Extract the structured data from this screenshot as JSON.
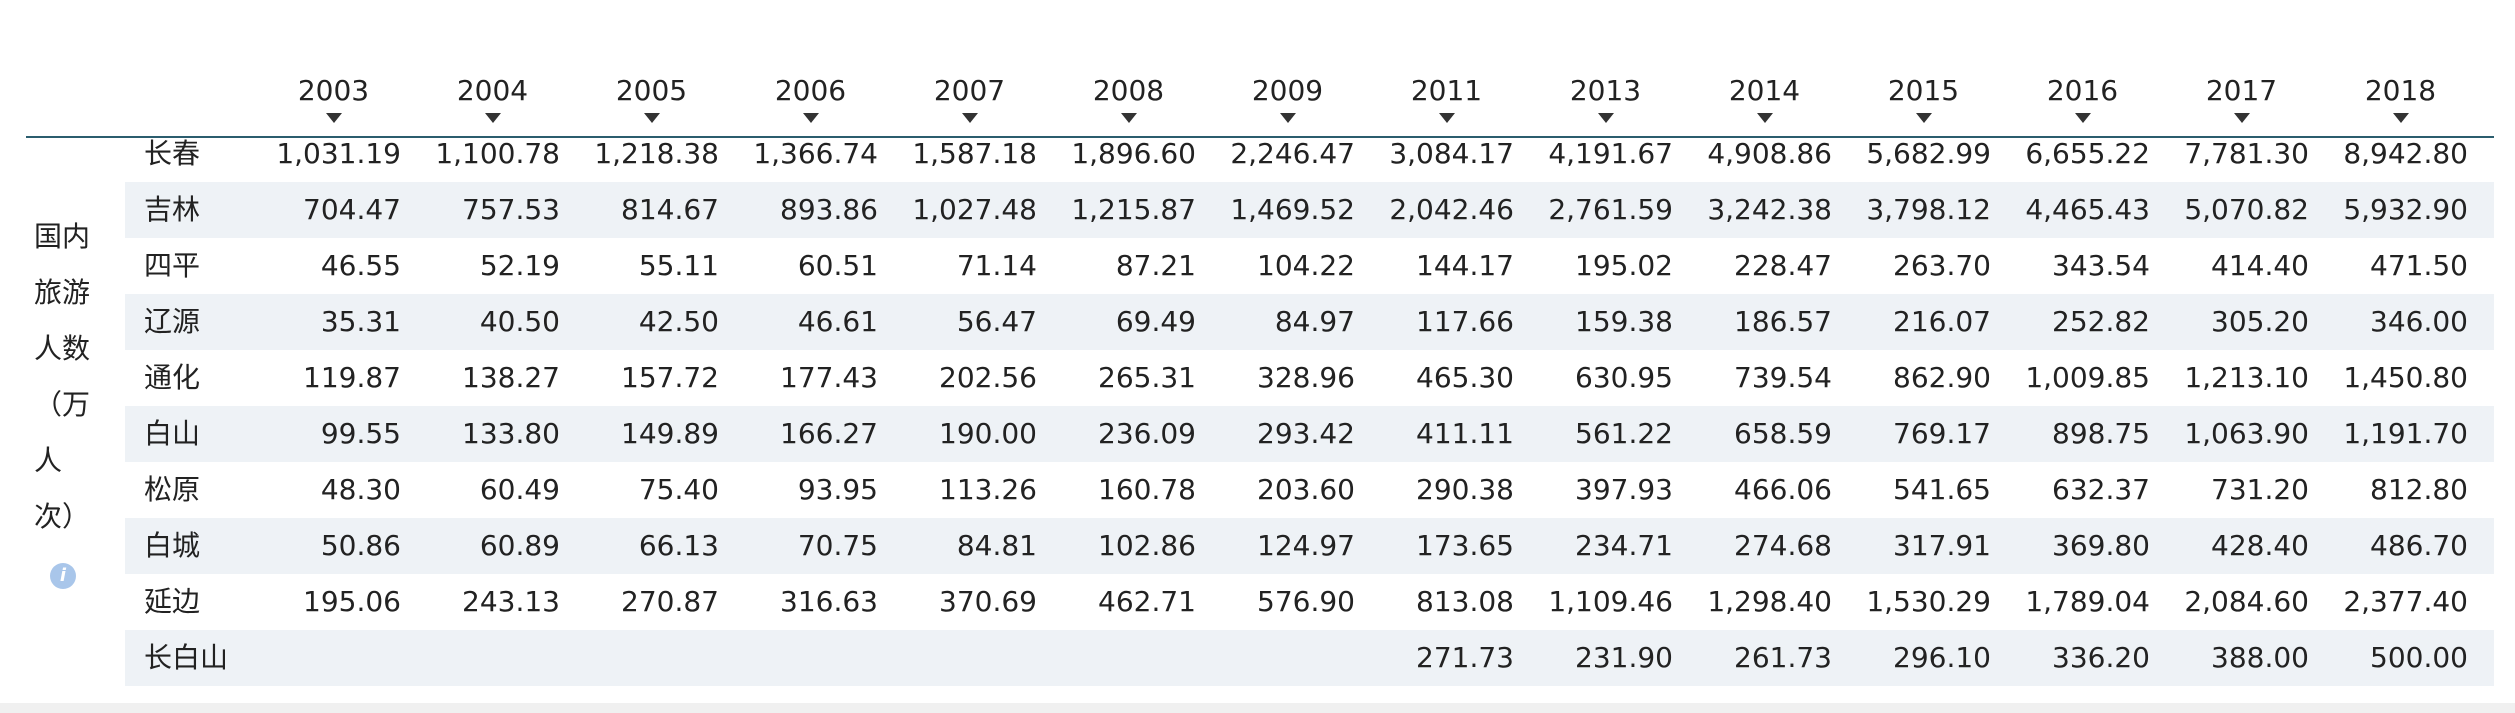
{
  "table": {
    "columns": [
      "2003",
      "2004",
      "2005",
      "2006",
      "2007",
      "2008",
      "2009",
      "2011",
      "2013",
      "2014",
      "2015",
      "2016",
      "2017",
      "2018"
    ],
    "row_group_label": "国内旅游人数（万人次）",
    "rows": [
      {
        "name": "长春",
        "values": [
          "1,031.19",
          "1,100.78",
          "1,218.38",
          "1,366.74",
          "1,587.18",
          "1,896.60",
          "2,246.47",
          "3,084.17",
          "4,191.67",
          "4,908.86",
          "5,682.99",
          "6,655.22",
          "7,781.30",
          "8,942.80"
        ]
      },
      {
        "name": "吉林",
        "values": [
          "704.47",
          "757.53",
          "814.67",
          "893.86",
          "1,027.48",
          "1,215.87",
          "1,469.52",
          "2,042.46",
          "2,761.59",
          "3,242.38",
          "3,798.12",
          "4,465.43",
          "5,070.82",
          "5,932.90"
        ]
      },
      {
        "name": "四平",
        "values": [
          "46.55",
          "52.19",
          "55.11",
          "60.51",
          "71.14",
          "87.21",
          "104.22",
          "144.17",
          "195.02",
          "228.47",
          "263.70",
          "343.54",
          "414.40",
          "471.50"
        ]
      },
      {
        "name": "辽源",
        "values": [
          "35.31",
          "40.50",
          "42.50",
          "46.61",
          "56.47",
          "69.49",
          "84.97",
          "117.66",
          "159.38",
          "186.57",
          "216.07",
          "252.82",
          "305.20",
          "346.00"
        ]
      },
      {
        "name": "通化",
        "values": [
          "119.87",
          "138.27",
          "157.72",
          "177.43",
          "202.56",
          "265.31",
          "328.96",
          "465.30",
          "630.95",
          "739.54",
          "862.90",
          "1,009.85",
          "1,213.10",
          "1,450.80"
        ]
      },
      {
        "name": "白山",
        "values": [
          "99.55",
          "133.80",
          "149.89",
          "166.27",
          "190.00",
          "236.09",
          "293.42",
          "411.11",
          "561.22",
          "658.59",
          "769.17",
          "898.75",
          "1,063.90",
          "1,191.70"
        ]
      },
      {
        "name": "松原",
        "values": [
          "48.30",
          "60.49",
          "75.40",
          "93.95",
          "113.26",
          "160.78",
          "203.60",
          "290.38",
          "397.93",
          "466.06",
          "541.65",
          "632.37",
          "731.20",
          "812.80"
        ]
      },
      {
        "name": "白城",
        "values": [
          "50.86",
          "60.89",
          "66.13",
          "70.75",
          "84.81",
          "102.86",
          "124.97",
          "173.65",
          "234.71",
          "274.68",
          "317.91",
          "369.80",
          "428.40",
          "486.70"
        ]
      },
      {
        "name": "延边",
        "values": [
          "195.06",
          "243.13",
          "270.87",
          "316.63",
          "370.69",
          "462.71",
          "576.90",
          "813.08",
          "1,109.46",
          "1,298.40",
          "1,530.29",
          "1,789.04",
          "2,084.60",
          "2,377.40"
        ]
      },
      {
        "name": "长白山",
        "values": [
          null,
          null,
          null,
          null,
          null,
          null,
          null,
          "271.73",
          "231.90",
          "261.73",
          "296.10",
          "336.20",
          "388.00",
          "500.00"
        ]
      }
    ]
  }
}
